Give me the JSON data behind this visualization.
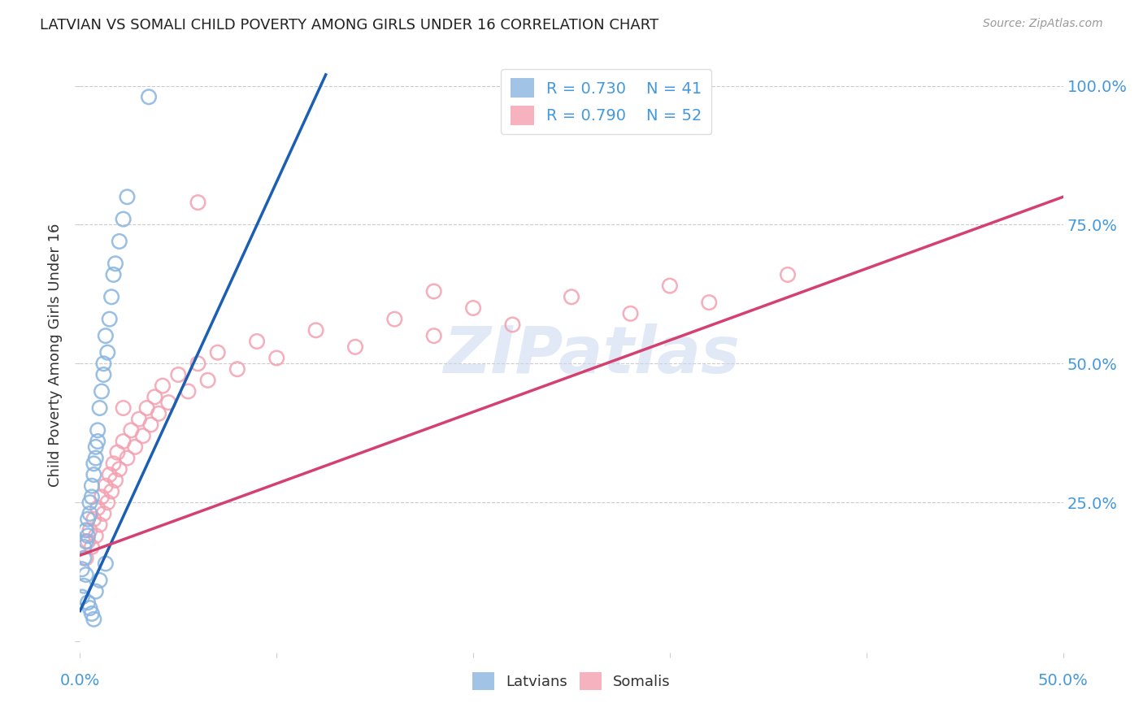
{
  "title": "LATVIAN VS SOMALI CHILD POVERTY AMONG GIRLS UNDER 16 CORRELATION CHART",
  "source": "Source: ZipAtlas.com",
  "ylabel": "Child Poverty Among Girls Under 16",
  "watermark": "ZIPatlas",
  "latvian_R": 0.73,
  "latvian_N": 41,
  "somali_R": 0.79,
  "somali_N": 52,
  "latvian_color": "#89B4E0",
  "somali_color": "#F4A0B0",
  "latvian_line_color": "#1A5FB4",
  "somali_line_color": "#D44070",
  "background_color": "#FFFFFF",
  "grid_color": "#CCCCCC",
  "axis_label_color": "#4499DD",
  "title_color": "#222222",
  "xlim": [
    0.0,
    0.5
  ],
  "ylim": [
    -0.02,
    1.05
  ],
  "ytick_vals": [
    0.25,
    0.5,
    0.75,
    1.0
  ],
  "ytick_labels": [
    "25.0%",
    "50.0%",
    "75.0%",
    "100.0%"
  ],
  "latvian_x": [
    0.001,
    0.002,
    0.002,
    0.003,
    0.003,
    0.004,
    0.004,
    0.005,
    0.005,
    0.006,
    0.006,
    0.007,
    0.007,
    0.008,
    0.008,
    0.009,
    0.009,
    0.01,
    0.011,
    0.012,
    0.012,
    0.013,
    0.014,
    0.015,
    0.016,
    0.017,
    0.018,
    0.02,
    0.022,
    0.024,
    0.001,
    0.002,
    0.003,
    0.004,
    0.005,
    0.006,
    0.007,
    0.008,
    0.01,
    0.013,
    0.035
  ],
  "latvian_y": [
    0.13,
    0.17,
    0.15,
    0.2,
    0.18,
    0.22,
    0.19,
    0.25,
    0.23,
    0.28,
    0.26,
    0.32,
    0.3,
    0.35,
    0.33,
    0.38,
    0.36,
    0.42,
    0.45,
    0.5,
    0.48,
    0.55,
    0.52,
    0.58,
    0.62,
    0.66,
    0.68,
    0.72,
    0.76,
    0.8,
    0.08,
    0.1,
    0.12,
    0.07,
    0.06,
    0.05,
    0.04,
    0.09,
    0.11,
    0.14,
    0.98
  ],
  "somali_x": [
    0.003,
    0.004,
    0.005,
    0.006,
    0.007,
    0.008,
    0.009,
    0.01,
    0.011,
    0.012,
    0.013,
    0.014,
    0.015,
    0.016,
    0.017,
    0.018,
    0.019,
    0.02,
    0.022,
    0.024,
    0.026,
    0.028,
    0.03,
    0.032,
    0.034,
    0.036,
    0.038,
    0.04,
    0.042,
    0.045,
    0.05,
    0.055,
    0.06,
    0.065,
    0.07,
    0.08,
    0.09,
    0.1,
    0.12,
    0.14,
    0.16,
    0.18,
    0.2,
    0.22,
    0.25,
    0.28,
    0.3,
    0.32,
    0.36,
    0.022,
    0.06,
    0.18
  ],
  "somali_y": [
    0.15,
    0.18,
    0.2,
    0.17,
    0.22,
    0.19,
    0.24,
    0.21,
    0.26,
    0.23,
    0.28,
    0.25,
    0.3,
    0.27,
    0.32,
    0.29,
    0.34,
    0.31,
    0.36,
    0.33,
    0.38,
    0.35,
    0.4,
    0.37,
    0.42,
    0.39,
    0.44,
    0.41,
    0.46,
    0.43,
    0.48,
    0.45,
    0.5,
    0.47,
    0.52,
    0.49,
    0.54,
    0.51,
    0.56,
    0.53,
    0.58,
    0.55,
    0.6,
    0.57,
    0.62,
    0.59,
    0.64,
    0.61,
    0.66,
    0.42,
    0.79,
    0.63
  ],
  "lv_line_x0": 0.0,
  "lv_line_y0": 0.055,
  "lv_line_x1": 0.125,
  "lv_line_y1": 1.02,
  "sm_line_x0": 0.0,
  "sm_line_y0": 0.155,
  "sm_line_x1": 0.5,
  "sm_line_y1": 0.8
}
